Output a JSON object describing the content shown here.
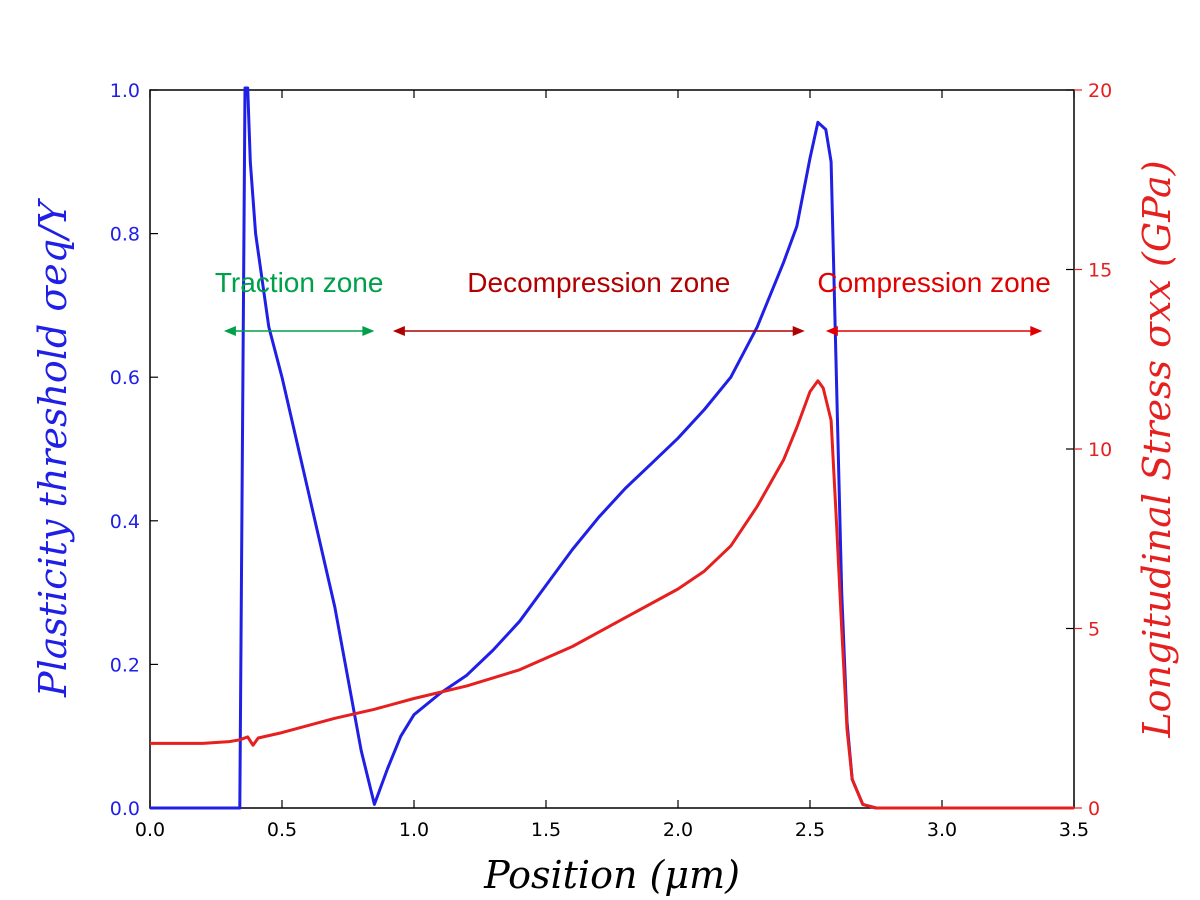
{
  "chart_data": {
    "type": "line",
    "x": {
      "label": "Position (μm)",
      "range": [
        0,
        3.5
      ],
      "ticks": [
        0.0,
        0.5,
        1.0,
        1.5,
        2.0,
        2.5,
        3.0,
        3.5
      ],
      "tick_labels": [
        "0.0",
        "0.5",
        "1.0",
        "1.5",
        "2.0",
        "2.5",
        "3.0",
        "3.5"
      ]
    },
    "y_left": {
      "label": "Plasticity threshold σeq/Y",
      "range": [
        0,
        1.0
      ],
      "ticks": [
        0.0,
        0.2,
        0.4,
        0.6,
        0.8,
        1.0
      ],
      "tick_labels": [
        "0.0",
        "0.2",
        "0.4",
        "0.6",
        "0.8",
        "1.0"
      ],
      "color": "#1f1fe6"
    },
    "y_right": {
      "label": "Longitudinal Stress σxx (GPa)",
      "range": [
        0,
        20
      ],
      "ticks": [
        0,
        5,
        10,
        15,
        20
      ],
      "tick_labels": [
        "0",
        "5",
        "10",
        "15",
        "20"
      ],
      "color": "#e61f1f"
    },
    "series": [
      {
        "name": "Plasticity threshold σeq/Y",
        "axis": "left",
        "color": "#1f1fe6",
        "points": [
          [
            0.0,
            0.0
          ],
          [
            0.34,
            0.0
          ],
          [
            0.345,
            0.25
          ],
          [
            0.36,
            1.02
          ],
          [
            0.37,
            1.05
          ],
          [
            0.38,
            0.9
          ],
          [
            0.4,
            0.8
          ],
          [
            0.45,
            0.67
          ],
          [
            0.5,
            0.6
          ],
          [
            0.6,
            0.44
          ],
          [
            0.7,
            0.28
          ],
          [
            0.8,
            0.08
          ],
          [
            0.85,
            0.005
          ],
          [
            0.9,
            0.055
          ],
          [
            0.95,
            0.1
          ],
          [
            1.0,
            0.13
          ],
          [
            1.1,
            0.16
          ],
          [
            1.2,
            0.185
          ],
          [
            1.3,
            0.22
          ],
          [
            1.4,
            0.26
          ],
          [
            1.5,
            0.31
          ],
          [
            1.6,
            0.36
          ],
          [
            1.7,
            0.405
          ],
          [
            1.8,
            0.445
          ],
          [
            1.9,
            0.48
          ],
          [
            2.0,
            0.515
          ],
          [
            2.1,
            0.555
          ],
          [
            2.2,
            0.6
          ],
          [
            2.3,
            0.67
          ],
          [
            2.4,
            0.76
          ],
          [
            2.45,
            0.81
          ],
          [
            2.5,
            0.905
          ],
          [
            2.53,
            0.955
          ],
          [
            2.56,
            0.945
          ],
          [
            2.58,
            0.9
          ],
          [
            2.6,
            0.6
          ],
          [
            2.62,
            0.3
          ],
          [
            2.64,
            0.12
          ],
          [
            2.66,
            0.04
          ],
          [
            2.7,
            0.005
          ],
          [
            2.75,
            0.0
          ],
          [
            3.5,
            0.0
          ]
        ]
      },
      {
        "name": "Longitudinal Stress σxx (GPa)",
        "axis": "right",
        "color": "#e61f1f",
        "points": [
          [
            0.0,
            1.8
          ],
          [
            0.2,
            1.8
          ],
          [
            0.3,
            1.85
          ],
          [
            0.34,
            1.9
          ],
          [
            0.37,
            1.98
          ],
          [
            0.39,
            1.75
          ],
          [
            0.41,
            1.95
          ],
          [
            0.5,
            2.1
          ],
          [
            0.7,
            2.5
          ],
          [
            0.85,
            2.75
          ],
          [
            1.0,
            3.05
          ],
          [
            1.2,
            3.4
          ],
          [
            1.4,
            3.85
          ],
          [
            1.6,
            4.5
          ],
          [
            1.8,
            5.3
          ],
          [
            2.0,
            6.1
          ],
          [
            2.1,
            6.6
          ],
          [
            2.2,
            7.3
          ],
          [
            2.3,
            8.4
          ],
          [
            2.4,
            9.7
          ],
          [
            2.45,
            10.6
          ],
          [
            2.5,
            11.6
          ],
          [
            2.53,
            11.9
          ],
          [
            2.55,
            11.7
          ],
          [
            2.58,
            10.8
          ],
          [
            2.6,
            8.0
          ],
          [
            2.62,
            5.0
          ],
          [
            2.64,
            2.2
          ],
          [
            2.66,
            0.8
          ],
          [
            2.7,
            0.1
          ],
          [
            2.75,
            0.0
          ],
          [
            3.5,
            0.0
          ]
        ]
      }
    ],
    "annotations": [
      {
        "text": "Traction zone",
        "color": "#00a04a",
        "x_from": 0.28,
        "x_to": 0.85
      },
      {
        "text": "Decompression zone",
        "color": "#b00000",
        "x_from": 0.92,
        "x_to": 2.48
      },
      {
        "text": "Compression zone",
        "color": "#e00000",
        "x_from": 2.56,
        "x_to": 3.38
      }
    ]
  }
}
